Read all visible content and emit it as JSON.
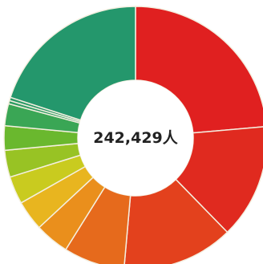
{
  "chart_data": {
    "type": "pie",
    "donut": true,
    "center_label": "242,429人",
    "segments": [
      {
        "share": 0.236,
        "color": "#e02020"
      },
      {
        "share": 0.141,
        "color": "#e02a1f"
      },
      {
        "share": 0.137,
        "color": "#e3411d"
      },
      {
        "share": 0.075,
        "color": "#e66a1c"
      },
      {
        "share": 0.042,
        "color": "#ea8f1c"
      },
      {
        "share": 0.037,
        "color": "#e8b51f"
      },
      {
        "share": 0.034,
        "color": "#c9cb1f"
      },
      {
        "share": 0.033,
        "color": "#98c324"
      },
      {
        "share": 0.03,
        "color": "#6ab82e"
      },
      {
        "share": 0.027,
        "color": "#3aa655"
      },
      {
        "share": 0.004,
        "color": "#2e9d64"
      },
      {
        "share": 0.004,
        "color": "#2b9a68"
      },
      {
        "share": 0.2,
        "color": "#24976c"
      }
    ]
  }
}
